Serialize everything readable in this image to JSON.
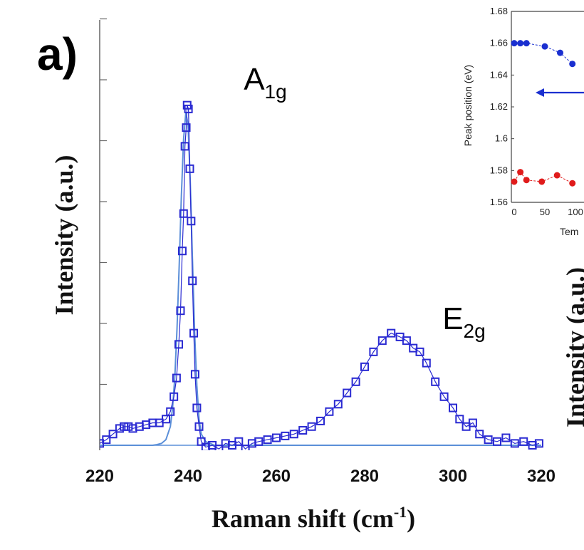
{
  "panel_label": "a)",
  "chart_data": [
    {
      "type": "scatter",
      "xlabel": "Raman shift (cm",
      "xlabel_superscript": "-1",
      "xlabel_close": ")",
      "ylabel": "Intensity (a.u.)",
      "xlim": [
        220,
        320
      ],
      "xticks": [
        "220",
        "240",
        "260",
        "280",
        "300",
        "320"
      ],
      "ylim": [
        0,
        1.1
      ],
      "annotations": [
        {
          "text": "A",
          "sub": "1g",
          "x": 241,
          "y": 0.97
        },
        {
          "text": "E",
          "sub": "2g",
          "x": 286,
          "y": 0.33
        }
      ],
      "marker_color": "#2a2ad2",
      "fit_color": "#5b8fd8",
      "series": [
        {
          "marker": "open-square",
          "x": [
            220.0,
            221.5,
            223.0,
            224.5,
            225.5,
            226.5,
            227.5,
            229.0,
            230.5,
            232.0,
            233.5,
            235.0,
            236.0,
            236.8,
            237.4,
            237.9,
            238.3,
            238.7,
            239.0,
            239.3,
            239.6,
            239.8,
            240.1,
            240.4,
            240.7,
            241.0,
            241.3,
            241.6,
            242.0,
            242.5,
            243.0,
            244.0,
            245.5,
            247.0,
            248.5,
            250.0,
            251.5,
            253.0,
            254.5,
            256.0,
            258.0,
            260.0,
            262.0,
            264.0,
            266.0,
            268.0,
            270.0,
            272.0,
            274.0,
            276.0,
            278.0,
            280.0,
            282.0,
            284.0,
            286.0,
            288.0,
            289.5,
            291.0,
            292.5,
            294.0,
            296.0,
            298.0,
            300.0,
            301.5,
            303.0,
            304.5,
            306.0,
            308.0,
            310.0,
            312.0,
            314.0,
            316.0,
            318.0,
            319.5
          ],
          "y": [
            0.005,
            0.015,
            0.03,
            0.045,
            0.05,
            0.05,
            0.045,
            0.05,
            0.055,
            0.06,
            0.06,
            0.07,
            0.09,
            0.13,
            0.18,
            0.27,
            0.36,
            0.52,
            0.62,
            0.8,
            0.85,
            0.91,
            0.9,
            0.74,
            0.6,
            0.44,
            0.3,
            0.19,
            0.1,
            0.05,
            0.01,
            -0.005,
            0.0,
            -0.01,
            0.005,
            0.0,
            0.01,
            -0.01,
            0.005,
            0.01,
            0.015,
            0.02,
            0.025,
            0.03,
            0.04,
            0.05,
            0.065,
            0.09,
            0.11,
            0.14,
            0.17,
            0.21,
            0.25,
            0.28,
            0.3,
            0.29,
            0.28,
            0.26,
            0.25,
            0.22,
            0.17,
            0.13,
            0.1,
            0.07,
            0.05,
            0.06,
            0.03,
            0.015,
            0.01,
            0.02,
            0.005,
            0.01,
            0.0,
            0.005
          ]
        },
        {
          "marker": "line",
          "x": [
            220,
            222,
            224,
            226,
            228,
            230,
            232,
            233,
            234,
            235,
            236,
            236.5,
            237,
            237.5,
            238,
            238.5,
            239,
            239.5,
            240,
            240.5,
            241,
            241.5,
            242,
            242.5,
            243,
            244,
            246,
            248,
            250,
            255,
            260,
            265,
            270,
            275,
            280,
            285,
            290,
            295,
            300,
            305,
            310,
            315,
            320
          ],
          "y": [
            0,
            0,
            0,
            0,
            0,
            0,
            0,
            0.002,
            0.005,
            0.015,
            0.05,
            0.1,
            0.18,
            0.31,
            0.48,
            0.67,
            0.82,
            0.89,
            0.86,
            0.71,
            0.5,
            0.3,
            0.16,
            0.07,
            0.03,
            0.01,
            0,
            0,
            0,
            0,
            0,
            0,
            0,
            0,
            0,
            0,
            0,
            0,
            0,
            0,
            0,
            0,
            0
          ]
        }
      ],
      "grid": false,
      "legend": "none"
    },
    {
      "type": "scatter",
      "ylabel": "Peak position (eV)",
      "xlabel_visible": "Tem",
      "ylim": [
        1.56,
        1.68
      ],
      "yticks": [
        "1.68",
        "1.66",
        "1.64",
        "1.62",
        "1.6",
        "1.58",
        "1.56"
      ],
      "xticks": [
        "0",
        "50",
        "100"
      ],
      "xlim": [
        0,
        100
      ],
      "series": [
        {
          "color": "#1a2fd0",
          "x": [
            0,
            10,
            20,
            50,
            75,
            95
          ],
          "y": [
            1.66,
            1.66,
            1.66,
            1.658,
            1.654,
            1.647
          ]
        },
        {
          "color": "#e01b1b",
          "x": [
            0,
            10,
            20,
            45,
            70,
            95
          ],
          "y": [
            1.573,
            1.579,
            1.574,
            1.573,
            1.577,
            1.572
          ]
        }
      ],
      "arrow": {
        "color": "#1a2fd0",
        "direction": "left"
      }
    }
  ],
  "right_panel_partial_ylabel": "Intensity (a.u.)"
}
